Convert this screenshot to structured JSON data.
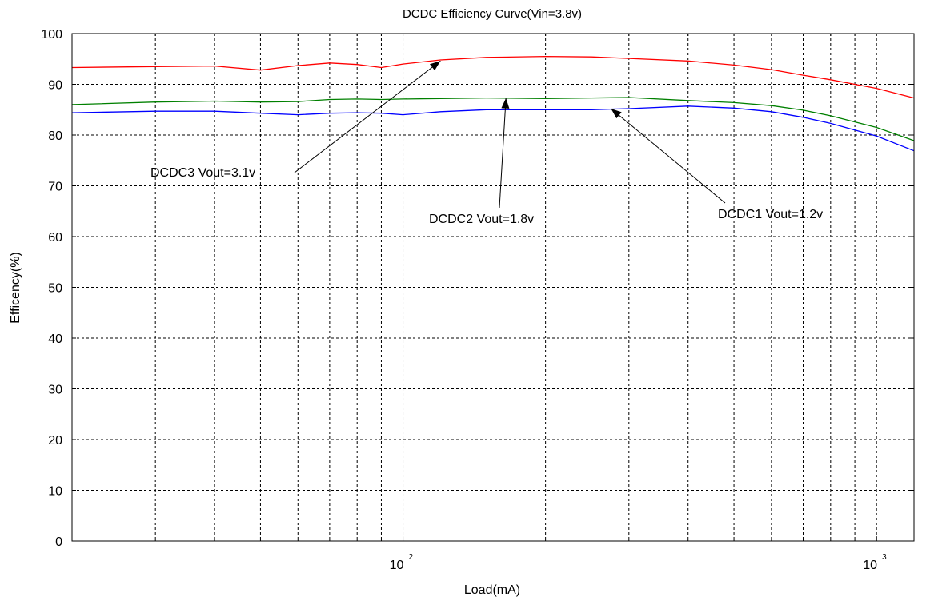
{
  "chart_data": {
    "type": "line",
    "title": "DCDC Efficiency Curve(Vin=3.8v)",
    "xlabel": "Load(mA)",
    "ylabel": "Efficency(%)",
    "x_scale": "log",
    "xlim": [
      20,
      1200
    ],
    "ylim": [
      0,
      100
    ],
    "grid": true,
    "y_ticks": [
      "0",
      "10",
      "20",
      "30",
      "40",
      "50",
      "60",
      "70",
      "80",
      "90",
      "100"
    ],
    "x_tick_labels": [
      {
        "value": 100,
        "base": "10",
        "exponent": "2"
      },
      {
        "value": 1000,
        "base": "10",
        "exponent": "3"
      }
    ],
    "series": [
      {
        "color": "#ff0000",
        "x": [
          20,
          30,
          40,
          50,
          60,
          70,
          80,
          90,
          100,
          120,
          150,
          200,
          250,
          300,
          400,
          500,
          600,
          700,
          800,
          1000,
          1200
        ],
        "y": [
          93.3,
          93.5,
          93.6,
          92.8,
          93.7,
          94.2,
          93.9,
          93.3,
          94.0,
          94.8,
          95.3,
          95.5,
          95.4,
          95.1,
          94.6,
          93.8,
          92.9,
          91.8,
          90.9,
          89.2,
          87.3
        ]
      },
      {
        "color": "#008000",
        "x": [
          20,
          30,
          40,
          50,
          60,
          70,
          80,
          90,
          100,
          120,
          150,
          200,
          250,
          300,
          400,
          500,
          600,
          700,
          800,
          1000,
          1200
        ],
        "y": [
          86.0,
          86.5,
          86.7,
          86.5,
          86.6,
          87.0,
          87.1,
          87.0,
          87.1,
          87.2,
          87.3,
          87.2,
          87.3,
          87.4,
          86.8,
          86.4,
          85.8,
          84.9,
          83.8,
          81.5,
          78.9
        ]
      },
      {
        "color": "#0000ff",
        "x": [
          20,
          30,
          40,
          50,
          60,
          70,
          80,
          90,
          100,
          120,
          150,
          200,
          250,
          300,
          400,
          500,
          600,
          700,
          800,
          1000,
          1200
        ],
        "y": [
          84.4,
          84.7,
          84.7,
          84.3,
          84.0,
          84.3,
          84.4,
          84.3,
          84.0,
          84.6,
          85.0,
          85.0,
          85.0,
          85.2,
          85.7,
          85.3,
          84.6,
          83.5,
          82.3,
          79.8,
          76.9
        ]
      }
    ],
    "annotations": [
      {
        "text": "DCDC3  Vout=3.1v",
        "point_x": 120,
        "point_y": 94.6
      },
      {
        "text": "DCDC2 Vout=1.8v",
        "point_x": 165,
        "point_y": 87.3
      },
      {
        "text": "DCDC1 Vout=1.2v",
        "point_x": 275,
        "point_y": 85.2
      }
    ]
  }
}
